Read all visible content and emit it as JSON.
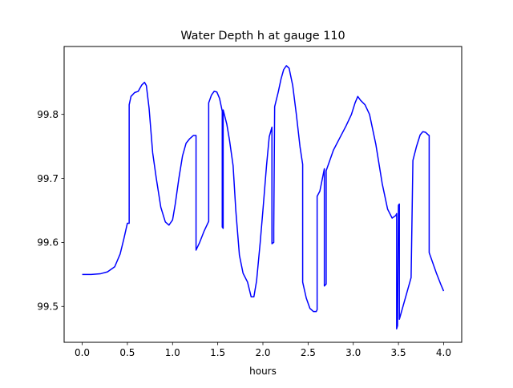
{
  "chart_data": {
    "type": "line",
    "title": "Water Depth h at gauge 110",
    "xlabel": "hours",
    "ylabel": "",
    "xlim": [
      -0.2,
      4.2
    ],
    "ylim": [
      99.444,
      99.906
    ],
    "xticks": [
      0.0,
      0.5,
      1.0,
      1.5,
      2.0,
      2.5,
      3.0,
      3.5,
      4.0
    ],
    "xtick_labels": [
      "0.0",
      "0.5",
      "1.0",
      "1.5",
      "2.0",
      "2.5",
      "3.0",
      "3.5",
      "4.0"
    ],
    "yticks": [
      99.5,
      99.6,
      99.7,
      99.8
    ],
    "ytick_labels": [
      "99.5",
      "99.6",
      "99.7",
      "99.8"
    ],
    "grid": false,
    "legend": "none",
    "series": [
      {
        "color": "#0000ff",
        "x": [
          0.0,
          0.1,
          0.2,
          0.28,
          0.36,
          0.42,
          0.46,
          0.5,
          0.52,
          0.52,
          0.54,
          0.58,
          0.62,
          0.66,
          0.69,
          0.71,
          0.74,
          0.78,
          0.82,
          0.87,
          0.92,
          0.96,
          1.0,
          1.03,
          1.07,
          1.11,
          1.15,
          1.19,
          1.23,
          1.26,
          1.26,
          1.3,
          1.35,
          1.4,
          1.4,
          1.43,
          1.46,
          1.49,
          1.52,
          1.55,
          1.55,
          1.56,
          1.56,
          1.6,
          1.63,
          1.67,
          1.7,
          1.74,
          1.78,
          1.83,
          1.87,
          1.9,
          1.93,
          1.97,
          2.0,
          2.04,
          2.07,
          2.1,
          2.1,
          2.12,
          2.12,
          2.13,
          2.17,
          2.2,
          2.23,
          2.26,
          2.29,
          2.33,
          2.37,
          2.41,
          2.44,
          2.44,
          2.48,
          2.52,
          2.56,
          2.59,
          2.6,
          2.6,
          2.63,
          2.68,
          2.68,
          2.7,
          2.7,
          2.78,
          2.85,
          2.92,
          2.98,
          3.02,
          3.05,
          3.08,
          3.13,
          3.18,
          3.25,
          3.32,
          3.38,
          3.43,
          3.47,
          3.48,
          3.48,
          3.49,
          3.5,
          3.51,
          3.51,
          3.53,
          3.58,
          3.63,
          3.64,
          3.66,
          3.7,
          3.74,
          3.77,
          3.8,
          3.83,
          3.84,
          3.84,
          3.87,
          3.92,
          3.97,
          4.0
        ],
        "y": [
          99.55,
          99.55,
          99.551,
          99.554,
          99.562,
          99.582,
          99.605,
          99.63,
          99.63,
          99.815,
          99.828,
          99.834,
          99.836,
          99.846,
          99.85,
          99.845,
          99.81,
          99.74,
          99.7,
          99.655,
          99.632,
          99.627,
          99.635,
          99.66,
          99.7,
          99.735,
          99.755,
          99.762,
          99.767,
          99.767,
          99.588,
          99.6,
          99.618,
          99.633,
          99.818,
          99.83,
          99.836,
          99.835,
          99.825,
          99.805,
          99.624,
          99.622,
          99.807,
          99.785,
          99.76,
          99.72,
          99.65,
          99.58,
          99.552,
          99.538,
          99.515,
          99.515,
          99.54,
          99.6,
          99.65,
          99.72,
          99.765,
          99.78,
          99.598,
          99.6,
          99.622,
          99.812,
          99.835,
          99.855,
          99.87,
          99.876,
          99.872,
          99.845,
          99.8,
          99.75,
          99.722,
          99.538,
          99.513,
          99.497,
          99.492,
          99.492,
          99.495,
          99.672,
          99.68,
          99.715,
          99.532,
          99.535,
          99.712,
          99.744,
          99.763,
          99.782,
          99.8,
          99.818,
          99.828,
          99.822,
          99.815,
          99.8,
          99.753,
          99.692,
          99.652,
          99.638,
          99.642,
          99.645,
          99.465,
          99.47,
          99.658,
          99.66,
          99.48,
          99.49,
          99.515,
          99.54,
          99.545,
          99.728,
          99.75,
          99.768,
          99.773,
          99.772,
          99.768,
          99.767,
          99.584,
          99.572,
          99.552,
          99.534,
          99.524
        ]
      }
    ]
  }
}
